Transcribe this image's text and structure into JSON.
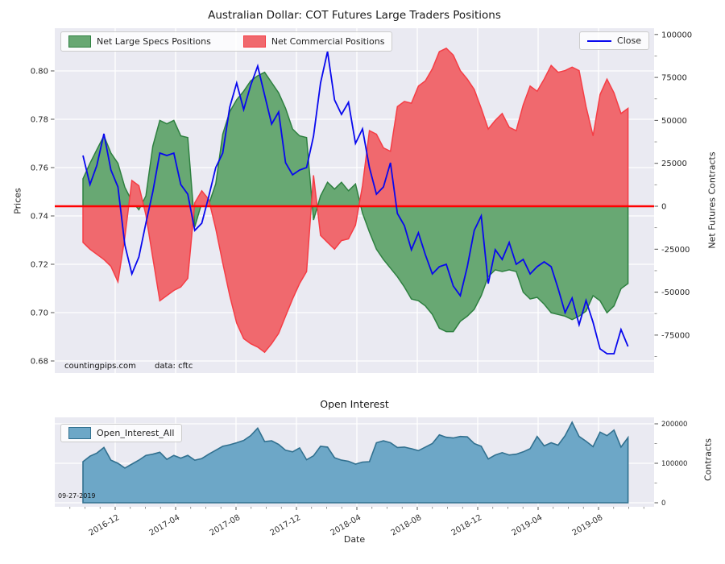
{
  "figure": {
    "title": "Australian Dollar: COT Futures Large Traders Positions"
  },
  "top_chart": {
    "ylabel_left": "Prices",
    "ylabel_right": "Net Futures Contracts",
    "legend": {
      "specs": "Net Large Specs Positions",
      "commercials": "Net Commercial Positions",
      "close": "Close"
    },
    "annotations": {
      "source": "countingpips.com",
      "data_source": "data: cftc"
    },
    "yticks_left": [
      "0.80",
      "0.78",
      "0.76",
      "0.74",
      "0.72",
      "0.70",
      "0.68"
    ],
    "yticks_right": [
      "100000",
      "75000",
      "50000",
      "25000",
      "0",
      "-25000",
      "-50000",
      "-75000"
    ]
  },
  "bottom_chart": {
    "title": "Open Interest",
    "ylabel_right": "Contracts",
    "legend": {
      "oi": "Open_Interest_All"
    },
    "annotation_date": "09-27-2019",
    "yticks_right": [
      "200000",
      "100000",
      "0"
    ]
  },
  "x_axis": {
    "label": "Date",
    "ticks": [
      "2016-12",
      "2017-04",
      "2017-08",
      "2017-12",
      "2018-04",
      "2018-08",
      "2018-12",
      "2019-04",
      "2019-08"
    ]
  },
  "colors": {
    "plot_bg": "#eaeaf2",
    "grid": "#ffffff",
    "specs_fill": "#68a873",
    "specs_edge": "#2e8040",
    "comm_fill": "#f0696e",
    "comm_edge": "#f53d45",
    "zero_line": "#ff0000",
    "close_line": "#0808ee",
    "oi_fill": "#6da7c7",
    "oi_edge": "#31708f",
    "tick_text": "#262626"
  },
  "chart_data": [
    {
      "type": "area",
      "title": "Australian Dollar: COT Futures Large Traders Positions",
      "xlabel": "Date",
      "ylabel_left": "Prices",
      "ylabel_right": "Net Futures Contracts",
      "x_start_date": "2016-09-27",
      "x_step_days": 14,
      "x_tick_labels": [
        "2016-12",
        "2017-04",
        "2017-08",
        "2017-12",
        "2018-04",
        "2018-08",
        "2018-12",
        "2019-04",
        "2019-08"
      ],
      "ylim_left": [
        0.675,
        0.817
      ],
      "ylim_right": [
        -97000,
        103500
      ],
      "grid": true,
      "legend_position": "upper left / upper right",
      "series": [
        {
          "name": "Net Large Specs Positions",
          "axis": "right",
          "style": "area",
          "values": [
            16000,
            25000,
            33000,
            41000,
            31000,
            25000,
            11000,
            3000,
            -2000,
            6000,
            35000,
            50000,
            48000,
            50000,
            41000,
            40000,
            -12000,
            2000,
            1000,
            13000,
            42000,
            55000,
            62000,
            67000,
            73000,
            76000,
            78000,
            72000,
            66000,
            57000,
            45000,
            41000,
            40000,
            -8000,
            6000,
            14000,
            10000,
            14000,
            9000,
            13000,
            -4000,
            -15000,
            -25000,
            -31000,
            -36000,
            -41000,
            -47000,
            -54000,
            -55000,
            -58000,
            -63000,
            -71000,
            -73000,
            -73000,
            -67000,
            -64000,
            -60000,
            -52000,
            -41000,
            -37000,
            -38000,
            -37000,
            -38000,
            -50000,
            -54000,
            -53000,
            -57000,
            -62000,
            -63000,
            -64000,
            -66000,
            -64000,
            -61000,
            -52000,
            -55000,
            -62000,
            -58000,
            -48000,
            -45000
          ]
        },
        {
          "name": "Net Commercial Positions",
          "axis": "right",
          "style": "area",
          "values": [
            -21000,
            -25000,
            -28000,
            -31000,
            -35000,
            -44000,
            -18000,
            15000,
            12000,
            -5000,
            -30000,
            -55000,
            -52000,
            -49000,
            -47000,
            -42000,
            2000,
            9000,
            4000,
            -13000,
            -33000,
            -52000,
            -68000,
            -77000,
            -80000,
            -82000,
            -85000,
            -80000,
            -74000,
            -64000,
            -54000,
            -45000,
            -38000,
            18000,
            -17000,
            -21000,
            -25000,
            -20000,
            -19000,
            -11000,
            12000,
            44000,
            42000,
            34000,
            32000,
            58000,
            61000,
            60000,
            70000,
            73000,
            80000,
            90000,
            92000,
            88000,
            79000,
            74000,
            68000,
            57000,
            45000,
            50000,
            54000,
            46000,
            44000,
            59000,
            70000,
            67000,
            74000,
            82000,
            78000,
            79000,
            81000,
            79000,
            58000,
            41000,
            65000,
            74000,
            66000,
            54000,
            57000
          ]
        },
        {
          "name": "Close",
          "axis": "left",
          "style": "line",
          "values": [
            0.765,
            0.753,
            0.761,
            0.774,
            0.759,
            0.752,
            0.728,
            0.716,
            0.723,
            0.737,
            0.75,
            0.766,
            0.765,
            0.766,
            0.753,
            0.749,
            0.734,
            0.737,
            0.748,
            0.76,
            0.766,
            0.785,
            0.795,
            0.784,
            0.794,
            0.802,
            0.79,
            0.778,
            0.783,
            0.762,
            0.757,
            0.759,
            0.76,
            0.773,
            0.795,
            0.808,
            0.788,
            0.782,
            0.787,
            0.77,
            0.776,
            0.76,
            0.749,
            0.752,
            0.762,
            0.741,
            0.736,
            0.726,
            0.733,
            0.724,
            0.716,
            0.719,
            0.72,
            0.711,
            0.707,
            0.719,
            0.734,
            0.74,
            0.712,
            0.726,
            0.722,
            0.729,
            0.72,
            0.722,
            0.716,
            0.719,
            0.721,
            0.719,
            0.71,
            0.7,
            0.706,
            0.695,
            0.705,
            0.696,
            0.685,
            0.683,
            0.683,
            0.693,
            0.686
          ]
        }
      ]
    },
    {
      "type": "area",
      "title": "Open Interest",
      "ylabel_right": "Contracts",
      "x_start_date": "2016-09-27",
      "x_step_days": 14,
      "ylim_right": [
        0,
        216000
      ],
      "grid": true,
      "series": [
        {
          "name": "Open_Interest_All",
          "axis": "right",
          "style": "area",
          "values": [
            104000,
            118000,
            126000,
            140000,
            108000,
            100000,
            88000,
            98000,
            108000,
            120000,
            123000,
            128000,
            110000,
            120000,
            113000,
            120000,
            108000,
            112000,
            123000,
            133000,
            143000,
            147000,
            152000,
            158000,
            170000,
            189000,
            155000,
            157000,
            148000,
            133000,
            129000,
            139000,
            109000,
            119000,
            143000,
            141000,
            114000,
            108000,
            105000,
            98000,
            103000,
            104000,
            152000,
            157000,
            152000,
            140000,
            141000,
            137000,
            132000,
            141000,
            150000,
            172000,
            166000,
            164000,
            168000,
            167000,
            150000,
            143000,
            111000,
            121000,
            127000,
            121000,
            123000,
            129000,
            137000,
            168000,
            144000,
            152000,
            146000,
            170000,
            204000,
            168000,
            156000,
            142000,
            179000,
            170000,
            184000,
            141000,
            165000
          ]
        }
      ]
    }
  ]
}
